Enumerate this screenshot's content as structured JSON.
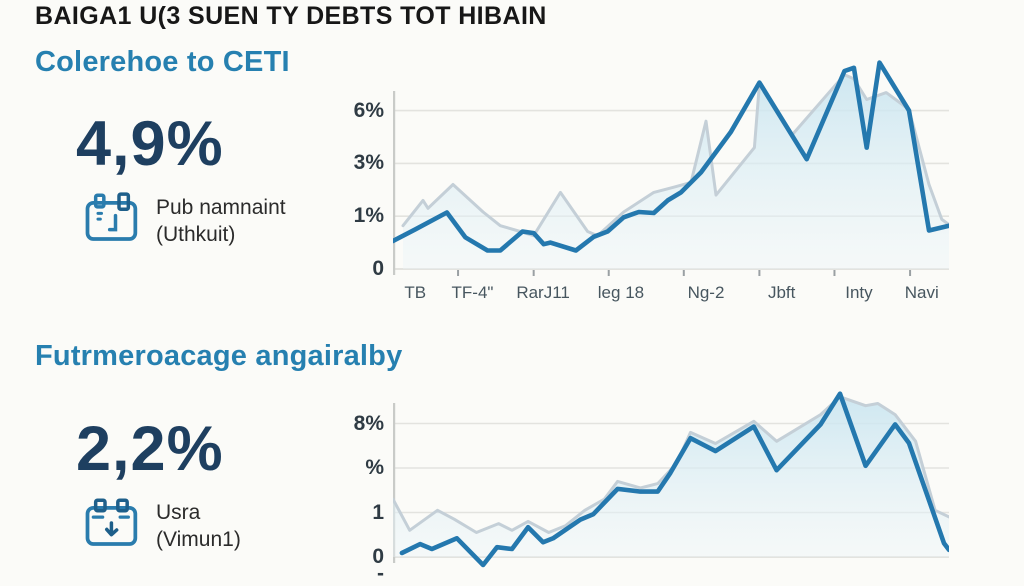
{
  "page": {
    "background": "#fbfbf8"
  },
  "title": "BAIGA1 U(3 SUEN TY DEBTS TOT HIBAIN",
  "colors": {
    "heading_blue": "#2680b0",
    "stat_navy": "#1e3f60",
    "primary_line": "#2478ae",
    "secondary_line": "#c4cfd7",
    "area_top": "#c9e5f0",
    "area_bottom": "#ecf5f8",
    "gridline": "#e3e3df",
    "axis_line": "#c9cbc8",
    "tick_mark": "#9aa0a3"
  },
  "sections": [
    {
      "heading": "Colerehoe to CETI",
      "stat": {
        "value": "4,9%",
        "label_line1": "Pub namnaint",
        "label_line2": "(Uthkuit)",
        "icon": "calendar-icon"
      }
    },
    {
      "heading": "Futrmeroacage angairalby",
      "stat": {
        "value": "2,2%",
        "label_line1": "Usra",
        "label_line2": "(Vimun1)",
        "icon": "calendar-download-icon"
      }
    }
  ],
  "chart_data": [
    {
      "type": "area",
      "title": "Colerehoe to CETI",
      "xlabel": "",
      "ylabel": "",
      "grid": true,
      "legend": "none",
      "y_axis_note": "nonlinear axis: equally spaced gridlines labeled 0, 1%, 3%, 6%; unit = gridline index",
      "y_ticks": [
        {
          "label": "6%",
          "unit": 3,
          "value_pct": 6
        },
        {
          "label": "3%",
          "unit": 2,
          "value_pct": 3
        },
        {
          "label": "1%",
          "unit": 1,
          "value_pct": 1
        },
        {
          "label": "0",
          "unit": 0,
          "value_pct": 0
        }
      ],
      "x_labels": [
        {
          "label": "TB",
          "f": 0.04
        },
        {
          "label": "TF-4\"",
          "f": 0.143
        },
        {
          "label": "RarJ11",
          "f": 0.27
        },
        {
          "label": "leg 18",
          "f": 0.41
        },
        {
          "label": "Ng-2",
          "f": 0.563
        },
        {
          "label": "Jbft",
          "f": 0.699
        },
        {
          "label": "Inty",
          "f": 0.838
        },
        {
          "label": "Navi",
          "f": 0.951
        }
      ],
      "series": [
        {
          "name": "secondary shaded area",
          "role": "secondary-area",
          "points": [
            [
              0.018,
              0.82
            ],
            [
              0.054,
              1.3
            ],
            [
              0.063,
              1.15
            ],
            [
              0.108,
              1.6
            ],
            [
              0.162,
              1.08
            ],
            [
              0.193,
              0.82
            ],
            [
              0.229,
              0.71
            ],
            [
              0.253,
              0.63
            ],
            [
              0.301,
              1.45
            ],
            [
              0.35,
              0.71
            ],
            [
              0.368,
              0.63
            ],
            [
              0.415,
              1.08
            ],
            [
              0.469,
              1.45
            ],
            [
              0.505,
              1.55
            ],
            [
              0.536,
              1.64
            ],
            [
              0.563,
              2.8
            ],
            [
              0.581,
              1.4
            ],
            [
              0.65,
              2.3
            ],
            [
              0.659,
              3.5
            ],
            [
              0.717,
              2.53
            ],
            [
              0.812,
              3.68
            ],
            [
              0.829,
              3.6
            ],
            [
              0.852,
              3.21
            ],
            [
              0.887,
              3.34
            ],
            [
              0.928,
              3.02
            ],
            [
              0.964,
              1.6
            ],
            [
              0.987,
              0.94
            ],
            [
              1.0,
              0.84
            ]
          ],
          "values_pct": [
            0.8,
            1.6,
            1.3,
            2.2,
            1.2,
            0.8,
            0.7,
            0.6,
            1.9,
            0.7,
            0.6,
            1.2,
            1.9,
            2.1,
            2.3,
            5.4,
            1.8,
            3.9,
            7.5,
            4.6,
            8.0,
            7.8,
            6.6,
            7.0,
            6.1,
            2.2,
            0.9,
            0.8
          ]
        },
        {
          "name": "primary dark line",
          "role": "primary-line",
          "points": [
            [
              0.0,
              0.53
            ],
            [
              0.04,
              0.75
            ],
            [
              0.097,
              1.07
            ],
            [
              0.13,
              0.6
            ],
            [
              0.17,
              0.35
            ],
            [
              0.193,
              0.35
            ],
            [
              0.233,
              0.71
            ],
            [
              0.253,
              0.68
            ],
            [
              0.271,
              0.47
            ],
            [
              0.283,
              0.5
            ],
            [
              0.329,
              0.35
            ],
            [
              0.361,
              0.61
            ],
            [
              0.386,
              0.71
            ],
            [
              0.415,
              0.98
            ],
            [
              0.442,
              1.08
            ],
            [
              0.469,
              1.06
            ],
            [
              0.494,
              1.3
            ],
            [
              0.518,
              1.45
            ],
            [
              0.554,
              1.83
            ],
            [
              0.608,
              2.6
            ],
            [
              0.659,
              3.53
            ],
            [
              0.744,
              2.08
            ],
            [
              0.812,
              3.75
            ],
            [
              0.829,
              3.81
            ],
            [
              0.852,
              2.3
            ],
            [
              0.875,
              3.91
            ],
            [
              0.928,
              3.0
            ],
            [
              0.964,
              0.73
            ],
            [
              1.0,
              0.82
            ]
          ],
          "values_pct": [
            0.5,
            0.8,
            1.1,
            0.6,
            0.4,
            0.4,
            0.7,
            0.7,
            0.5,
            0.5,
            0.4,
            0.6,
            0.7,
            1.0,
            1.2,
            1.1,
            1.6,
            1.9,
            2.7,
            4.8,
            7.6,
            3.2,
            8.3,
            8.4,
            3.9,
            8.7,
            6.0,
            0.7,
            0.8
          ]
        }
      ]
    },
    {
      "type": "area",
      "title": "Futrmeroacage angairalby",
      "xlabel": "",
      "ylabel": "",
      "grid": true,
      "legend": "none",
      "y_axis_note": "nonlinear axis: equally spaced gridlines labeled 0, 1, %, 8%; unit = gridline index; x labels cut off at image bottom",
      "y_ticks": [
        {
          "label": "8%",
          "unit": 3,
          "value_pct": 8
        },
        {
          "label": "%",
          "unit": 2,
          "value_pct": 4
        },
        {
          "label": "1",
          "unit": 1,
          "value_pct": 1
        },
        {
          "label": "0",
          "unit": 0,
          "value_pct": 0
        },
        {
          "label": "-",
          "unit": -0.38,
          "value_pct": null,
          "partial": true
        }
      ],
      "x_labels": [],
      "series": [
        {
          "name": "secondary shaded area",
          "role": "secondary-area",
          "points": [
            [
              0.0,
              1.3
            ],
            [
              0.03,
              0.6
            ],
            [
              0.08,
              1.05
            ],
            [
              0.11,
              0.85
            ],
            [
              0.15,
              0.55
            ],
            [
              0.19,
              0.75
            ],
            [
              0.214,
              0.6
            ],
            [
              0.243,
              0.8
            ],
            [
              0.28,
              0.55
            ],
            [
              0.31,
              0.7
            ],
            [
              0.345,
              1.05
            ],
            [
              0.38,
              1.3
            ],
            [
              0.404,
              1.7
            ],
            [
              0.445,
              1.55
            ],
            [
              0.476,
              1.65
            ],
            [
              0.51,
              2.1
            ],
            [
              0.535,
              2.8
            ],
            [
              0.58,
              2.55
            ],
            [
              0.649,
              3.05
            ],
            [
              0.69,
              2.6
            ],
            [
              0.769,
              3.2
            ],
            [
              0.804,
              3.6
            ],
            [
              0.85,
              3.4
            ],
            [
              0.872,
              3.45
            ],
            [
              0.903,
              3.2
            ],
            [
              0.94,
              2.6
            ],
            [
              0.975,
              1.05
            ],
            [
              1.0,
              0.9
            ]
          ],
          "values_pct": [
            1.9,
            0.6,
            1.1,
            0.9,
            0.6,
            0.8,
            0.6,
            0.8,
            0.6,
            0.7,
            1.1,
            1.9,
            3.1,
            2.7,
            3.0,
            4.4,
            7.2,
            6.2,
            8.2,
            6.4,
            8.8,
            10.4,
            9.6,
            9.8,
            8.8,
            6.4,
            1.1,
            0.9
          ]
        },
        {
          "name": "primary dark line",
          "role": "primary-line",
          "points": [
            [
              0.016,
              0.09
            ],
            [
              0.049,
              0.29
            ],
            [
              0.07,
              0.18
            ],
            [
              0.115,
              0.42
            ],
            [
              0.162,
              -0.18
            ],
            [
              0.187,
              0.22
            ],
            [
              0.214,
              0.18
            ],
            [
              0.243,
              0.67
            ],
            [
              0.27,
              0.33
            ],
            [
              0.288,
              0.42
            ],
            [
              0.337,
              0.84
            ],
            [
              0.36,
              0.96
            ],
            [
              0.404,
              1.53
            ],
            [
              0.445,
              1.47
            ],
            [
              0.476,
              1.47
            ],
            [
              0.499,
              1.89
            ],
            [
              0.535,
              2.67
            ],
            [
              0.58,
              2.38
            ],
            [
              0.649,
              2.93
            ],
            [
              0.69,
              1.95
            ],
            [
              0.769,
              2.98
            ],
            [
              0.804,
              3.67
            ],
            [
              0.85,
              2.05
            ],
            [
              0.903,
              2.98
            ],
            [
              0.928,
              2.56
            ],
            [
              0.991,
              0.31
            ],
            [
              1.0,
              0.16
            ]
          ],
          "values_pct": [
            0.1,
            0.3,
            0.2,
            0.4,
            -0.2,
            0.2,
            0.2,
            0.7,
            0.3,
            0.4,
            0.8,
            1.0,
            2.6,
            2.4,
            2.4,
            3.7,
            6.7,
            5.1,
            7.7,
            3.9,
            7.9,
            10.7,
            4.2,
            7.9,
            6.2,
            0.3,
            0.2
          ]
        }
      ]
    }
  ]
}
